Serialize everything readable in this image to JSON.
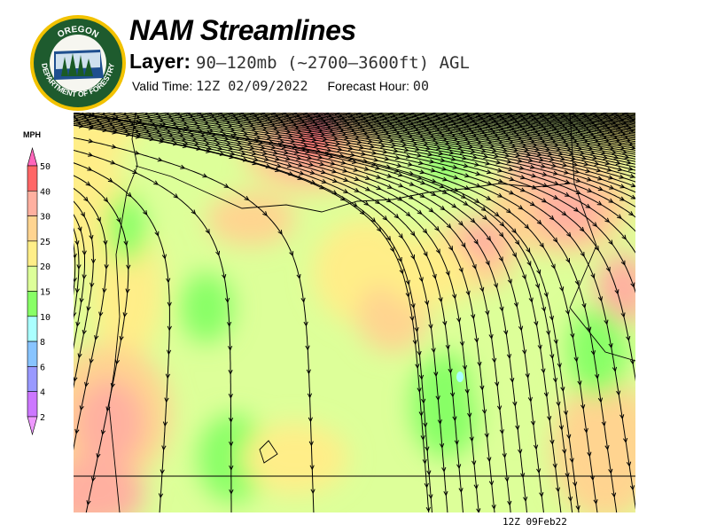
{
  "header": {
    "title": "NAM Streamlines",
    "layer_label": "Layer:",
    "layer_value": "90–120mb (~2700–3600ft) AGL",
    "valid_label": "Valid Time:",
    "valid_value": "12Z 02/09/2022",
    "forecast_label": "Forecast Hour:",
    "forecast_value": "00"
  },
  "logo": {
    "top_text": "OREGON",
    "bottom_text": "DEPARTMENT OF FORESTRY"
  },
  "colorbar": {
    "unit": "MPH",
    "labels": [
      "50",
      "40",
      "30",
      "25",
      "20",
      "15",
      "10",
      "8",
      "6",
      "4",
      "2"
    ],
    "colors": [
      "#ff66bb",
      "#ff6666",
      "#ffb0a0",
      "#ffd490",
      "#ffee88",
      "#ddff99",
      "#88ff66",
      "#aaffff",
      "#88c4ff",
      "#9999ff",
      "#cc77ff",
      "#ee99ff"
    ]
  },
  "map": {
    "timestamp": "12Z 09Feb22",
    "base_color": "#ddff99"
  }
}
